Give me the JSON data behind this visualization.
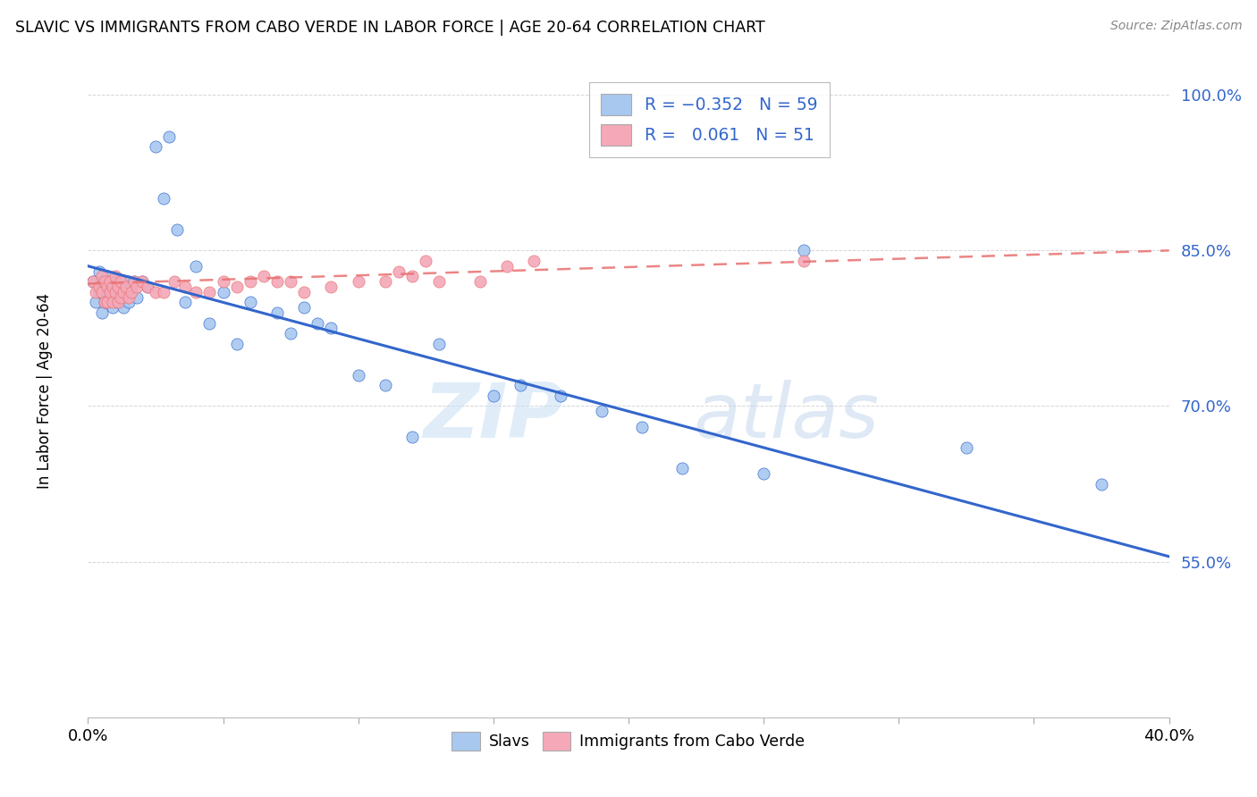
{
  "title": "SLAVIC VS IMMIGRANTS FROM CABO VERDE IN LABOR FORCE | AGE 20-64 CORRELATION CHART",
  "source": "Source: ZipAtlas.com",
  "ylabel": "In Labor Force | Age 20-64",
  "xlim": [
    0.0,
    0.4
  ],
  "ylim": [
    0.4,
    1.03
  ],
  "yticks": [
    0.55,
    0.7,
    0.85,
    1.0
  ],
  "ytick_labels": [
    "55.0%",
    "70.0%",
    "85.0%",
    "100.0%"
  ],
  "xticks": [
    0.0,
    0.05,
    0.1,
    0.15,
    0.2,
    0.25,
    0.3,
    0.35,
    0.4
  ],
  "slav_color": "#a8c8f0",
  "cabo_color": "#f4a8b8",
  "slav_line_color": "#3366cc",
  "cabo_line_color": "#e87070",
  "watermark1": "ZIP",
  "watermark2": "atlas",
  "background_color": "#ffffff",
  "slav_line_x0": 0.0,
  "slav_line_y0": 0.835,
  "slav_line_x1": 0.4,
  "slav_line_y1": 0.555,
  "cabo_line_x0": 0.0,
  "cabo_line_y0": 0.818,
  "cabo_line_x1": 0.4,
  "cabo_line_y1": 0.85,
  "slav_x": [
    0.002,
    0.003,
    0.004,
    0.004,
    0.005,
    0.005,
    0.006,
    0.006,
    0.007,
    0.007,
    0.008,
    0.008,
    0.009,
    0.009,
    0.01,
    0.01,
    0.011,
    0.011,
    0.012,
    0.012,
    0.013,
    0.013,
    0.014,
    0.015,
    0.015,
    0.016,
    0.017,
    0.018,
    0.02,
    0.022,
    0.025,
    0.028,
    0.03,
    0.033,
    0.036,
    0.04,
    0.045,
    0.05,
    0.055,
    0.06,
    0.07,
    0.075,
    0.08,
    0.085,
    0.09,
    0.1,
    0.11,
    0.12,
    0.13,
    0.15,
    0.16,
    0.175,
    0.19,
    0.205,
    0.22,
    0.25,
    0.265,
    0.325,
    0.375
  ],
  "slav_y": [
    0.82,
    0.8,
    0.81,
    0.83,
    0.79,
    0.82,
    0.815,
    0.8,
    0.81,
    0.825,
    0.82,
    0.805,
    0.815,
    0.795,
    0.82,
    0.81,
    0.8,
    0.815,
    0.81,
    0.8,
    0.795,
    0.815,
    0.81,
    0.82,
    0.8,
    0.815,
    0.82,
    0.805,
    0.82,
    0.815,
    0.95,
    0.9,
    0.96,
    0.87,
    0.8,
    0.835,
    0.78,
    0.81,
    0.76,
    0.8,
    0.79,
    0.77,
    0.795,
    0.78,
    0.775,
    0.73,
    0.72,
    0.67,
    0.76,
    0.71,
    0.72,
    0.71,
    0.695,
    0.68,
    0.64,
    0.635,
    0.85,
    0.66,
    0.625
  ],
  "cabo_x": [
    0.002,
    0.003,
    0.004,
    0.005,
    0.005,
    0.006,
    0.006,
    0.007,
    0.007,
    0.008,
    0.008,
    0.009,
    0.009,
    0.01,
    0.01,
    0.011,
    0.011,
    0.012,
    0.012,
    0.013,
    0.014,
    0.015,
    0.016,
    0.017,
    0.018,
    0.02,
    0.022,
    0.025,
    0.028,
    0.032,
    0.036,
    0.04,
    0.045,
    0.05,
    0.055,
    0.06,
    0.065,
    0.07,
    0.075,
    0.08,
    0.09,
    0.1,
    0.11,
    0.115,
    0.12,
    0.125,
    0.13,
    0.145,
    0.155,
    0.165,
    0.265
  ],
  "cabo_y": [
    0.82,
    0.81,
    0.815,
    0.825,
    0.81,
    0.82,
    0.8,
    0.815,
    0.8,
    0.81,
    0.82,
    0.815,
    0.8,
    0.81,
    0.825,
    0.815,
    0.8,
    0.82,
    0.805,
    0.81,
    0.815,
    0.805,
    0.81,
    0.82,
    0.815,
    0.82,
    0.815,
    0.81,
    0.81,
    0.82,
    0.815,
    0.81,
    0.81,
    0.82,
    0.815,
    0.82,
    0.825,
    0.82,
    0.82,
    0.81,
    0.815,
    0.82,
    0.82,
    0.83,
    0.825,
    0.84,
    0.82,
    0.82,
    0.835,
    0.84,
    0.84
  ]
}
